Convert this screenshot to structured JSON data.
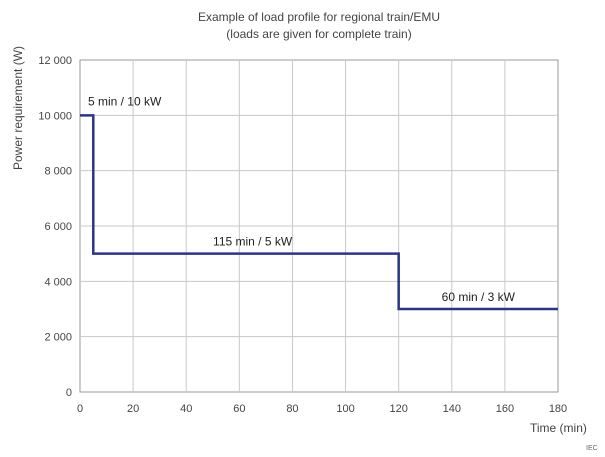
{
  "chart_data": {
    "type": "line",
    "title": "Example of load profile for regional train/EMU",
    "subtitle": "(loads are given for complete train)",
    "xlabel": "Time (min)",
    "ylabel": "Power requirement (W)",
    "xlim": [
      0,
      180
    ],
    "ylim": [
      0,
      12000
    ],
    "xticks": [
      0,
      20,
      40,
      60,
      80,
      100,
      120,
      140,
      160,
      180
    ],
    "yticks": [
      0,
      2000,
      4000,
      6000,
      8000,
      10000,
      12000
    ],
    "xtick_labels": [
      "0",
      "20",
      "40",
      "60",
      "80",
      "100",
      "120",
      "140",
      "160",
      "180"
    ],
    "ytick_labels": [
      "0",
      "2 000",
      "4 000",
      "6 000",
      "8 000",
      "10 000",
      "12 000"
    ],
    "grid": true,
    "color": "#2b3585",
    "series": [
      {
        "x": [
          0,
          5,
          5,
          120,
          120,
          180
        ],
        "y": [
          10000,
          10000,
          5000,
          5000,
          3000,
          3000
        ]
      }
    ],
    "annotations": [
      {
        "text": "5 min / 10 kW",
        "x": 3,
        "y": 10000
      },
      {
        "text": "115 min / 5 kW",
        "x": 65,
        "y": 5000
      },
      {
        "text": "60 min / 3 kW",
        "x": 150,
        "y": 3000
      }
    ],
    "watermark": "IEC"
  }
}
